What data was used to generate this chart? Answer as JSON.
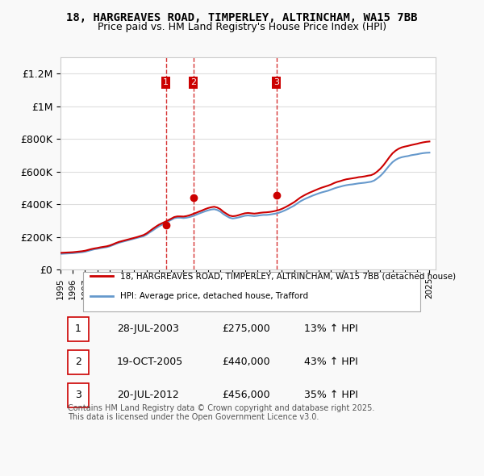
{
  "title": "18, HARGREAVES ROAD, TIMPERLEY, ALTRINCHAM, WA15 7BB",
  "subtitle": "Price paid vs. HM Land Registry's House Price Index (HPI)",
  "xlabel": "",
  "ylabel": "",
  "ylim": [
    0,
    1300000
  ],
  "xlim_start": 1995.0,
  "xlim_end": 2025.5,
  "yticks": [
    0,
    200000,
    400000,
    600000,
    800000,
    1000000,
    1200000
  ],
  "ytick_labels": [
    "£0",
    "£200K",
    "£400K",
    "£600K",
    "£800K",
    "£1M",
    "£1.2M"
  ],
  "background_color": "#f9f9f9",
  "plot_bg_color": "#ffffff",
  "grid_color": "#dddddd",
  "red_line_color": "#cc0000",
  "blue_line_color": "#6699cc",
  "sale_marker_color": "#cc0000",
  "dashed_line_color": "#cc0000",
  "transactions": [
    {
      "num": 1,
      "date": "28-JUL-2003",
      "price": 275000,
      "hpi_pct": "13%",
      "year": 2003.57
    },
    {
      "num": 2,
      "date": "19-OCT-2005",
      "price": 440000,
      "hpi_pct": "43%",
      "year": 2005.8
    },
    {
      "num": 3,
      "date": "20-JUL-2012",
      "price": 456000,
      "hpi_pct": "35%",
      "year": 2012.55
    }
  ],
  "legend_entries": [
    "18, HARGREAVES ROAD, TIMPERLEY, ALTRINCHAM, WA15 7BB (detached house)",
    "HPI: Average price, detached house, Trafford"
  ],
  "footer_text": "Contains HM Land Registry data © Crown copyright and database right 2025.\nThis data is licensed under the Open Government Licence v3.0.",
  "hpi_data_x": [
    1995.0,
    1995.25,
    1995.5,
    1995.75,
    1996.0,
    1996.25,
    1996.5,
    1996.75,
    1997.0,
    1997.25,
    1997.5,
    1997.75,
    1998.0,
    1998.25,
    1998.5,
    1998.75,
    1999.0,
    1999.25,
    1999.5,
    1999.75,
    2000.0,
    2000.25,
    2000.5,
    2000.75,
    2001.0,
    2001.25,
    2001.5,
    2001.75,
    2002.0,
    2002.25,
    2002.5,
    2002.75,
    2003.0,
    2003.25,
    2003.5,
    2003.75,
    2004.0,
    2004.25,
    2004.5,
    2004.75,
    2005.0,
    2005.25,
    2005.5,
    2005.75,
    2006.0,
    2006.25,
    2006.5,
    2006.75,
    2007.0,
    2007.25,
    2007.5,
    2007.75,
    2008.0,
    2008.25,
    2008.5,
    2008.75,
    2009.0,
    2009.25,
    2009.5,
    2009.75,
    2010.0,
    2010.25,
    2010.5,
    2010.75,
    2011.0,
    2011.25,
    2011.5,
    2011.75,
    2012.0,
    2012.25,
    2012.5,
    2012.75,
    2013.0,
    2013.25,
    2013.5,
    2013.75,
    2014.0,
    2014.25,
    2014.5,
    2014.75,
    2015.0,
    2015.25,
    2015.5,
    2015.75,
    2016.0,
    2016.25,
    2016.5,
    2016.75,
    2017.0,
    2017.25,
    2017.5,
    2017.75,
    2018.0,
    2018.25,
    2018.5,
    2018.75,
    2019.0,
    2019.25,
    2019.5,
    2019.75,
    2020.0,
    2020.25,
    2020.5,
    2020.75,
    2021.0,
    2021.25,
    2021.5,
    2021.75,
    2022.0,
    2022.25,
    2022.5,
    2022.75,
    2023.0,
    2023.25,
    2023.5,
    2023.75,
    2024.0,
    2024.25,
    2024.5,
    2024.75,
    2025.0
  ],
  "hpi_data_y": [
    97000,
    98000,
    99000,
    100000,
    101000,
    103000,
    105000,
    107000,
    110000,
    115000,
    120000,
    125000,
    128000,
    132000,
    135000,
    138000,
    143000,
    150000,
    158000,
    165000,
    170000,
    175000,
    180000,
    185000,
    190000,
    195000,
    200000,
    205000,
    215000,
    228000,
    240000,
    253000,
    265000,
    275000,
    285000,
    295000,
    305000,
    315000,
    318000,
    318000,
    316000,
    318000,
    322000,
    328000,
    335000,
    343000,
    350000,
    357000,
    363000,
    368000,
    370000,
    365000,
    355000,
    340000,
    328000,
    318000,
    313000,
    316000,
    320000,
    325000,
    330000,
    332000,
    330000,
    328000,
    330000,
    333000,
    335000,
    335000,
    337000,
    340000,
    343000,
    348000,
    355000,
    363000,
    372000,
    382000,
    392000,
    405000,
    418000,
    428000,
    437000,
    445000,
    453000,
    460000,
    467000,
    473000,
    478000,
    483000,
    490000,
    497000,
    503000,
    508000,
    513000,
    517000,
    520000,
    522000,
    525000,
    528000,
    530000,
    532000,
    535000,
    538000,
    545000,
    558000,
    573000,
    592000,
    615000,
    638000,
    658000,
    672000,
    682000,
    688000,
    692000,
    695000,
    700000,
    703000,
    706000,
    710000,
    713000,
    715000,
    716000
  ],
  "price_data_x": [
    1995.0,
    1995.25,
    1995.5,
    1995.75,
    1996.0,
    1996.25,
    1996.5,
    1996.75,
    1997.0,
    1997.25,
    1997.5,
    1997.75,
    1998.0,
    1998.25,
    1998.5,
    1998.75,
    1999.0,
    1999.25,
    1999.5,
    1999.75,
    2000.0,
    2000.25,
    2000.5,
    2000.75,
    2001.0,
    2001.25,
    2001.5,
    2001.75,
    2002.0,
    2002.25,
    2002.5,
    2002.75,
    2003.0,
    2003.25,
    2003.5,
    2003.75,
    2004.0,
    2004.25,
    2004.5,
    2004.75,
    2005.0,
    2005.25,
    2005.5,
    2005.75,
    2006.0,
    2006.25,
    2006.5,
    2006.75,
    2007.0,
    2007.25,
    2007.5,
    2007.75,
    2008.0,
    2008.25,
    2008.5,
    2008.75,
    2009.0,
    2009.25,
    2009.5,
    2009.75,
    2010.0,
    2010.25,
    2010.5,
    2010.75,
    2011.0,
    2011.25,
    2011.5,
    2011.75,
    2012.0,
    2012.25,
    2012.5,
    2012.75,
    2013.0,
    2013.25,
    2013.5,
    2013.75,
    2014.0,
    2014.25,
    2014.5,
    2014.75,
    2015.0,
    2015.25,
    2015.5,
    2015.75,
    2016.0,
    2016.25,
    2016.5,
    2016.75,
    2017.0,
    2017.25,
    2017.5,
    2017.75,
    2018.0,
    2018.25,
    2018.5,
    2018.75,
    2019.0,
    2019.25,
    2019.5,
    2019.75,
    2020.0,
    2020.25,
    2020.5,
    2020.75,
    2021.0,
    2021.25,
    2021.5,
    2021.75,
    2022.0,
    2022.25,
    2022.5,
    2022.75,
    2023.0,
    2023.25,
    2023.5,
    2023.75,
    2024.0,
    2024.25,
    2024.5,
    2024.75,
    2025.0
  ],
  "price_data_y": [
    103000,
    104000,
    105000,
    106000,
    107000,
    109000,
    111000,
    113000,
    116000,
    121000,
    126000,
    130000,
    133000,
    137000,
    140000,
    143000,
    148000,
    155000,
    163000,
    170000,
    175000,
    180000,
    185000,
    190000,
    195000,
    200000,
    206000,
    212000,
    222000,
    236000,
    250000,
    263000,
    275000,
    284000,
    293000,
    302000,
    312000,
    322000,
    326000,
    326000,
    325000,
    328000,
    333000,
    340000,
    347000,
    355000,
    362000,
    370000,
    377000,
    382000,
    385000,
    380000,
    370000,
    354000,
    342000,
    331000,
    327000,
    329000,
    334000,
    340000,
    345000,
    347000,
    345000,
    343000,
    345000,
    348000,
    350000,
    351000,
    353000,
    356000,
    360000,
    365000,
    372000,
    381000,
    391000,
    402000,
    413000,
    427000,
    441000,
    452000,
    462000,
    471000,
    479000,
    487000,
    495000,
    502000,
    508000,
    514000,
    521000,
    530000,
    537000,
    542000,
    548000,
    553000,
    556000,
    559000,
    562000,
    566000,
    568000,
    571000,
    575000,
    578000,
    586000,
    600000,
    617000,
    638000,
    663000,
    689000,
    712000,
    728000,
    740000,
    748000,
    753000,
    757000,
    762000,
    766000,
    770000,
    775000,
    779000,
    782000,
    784000
  ]
}
